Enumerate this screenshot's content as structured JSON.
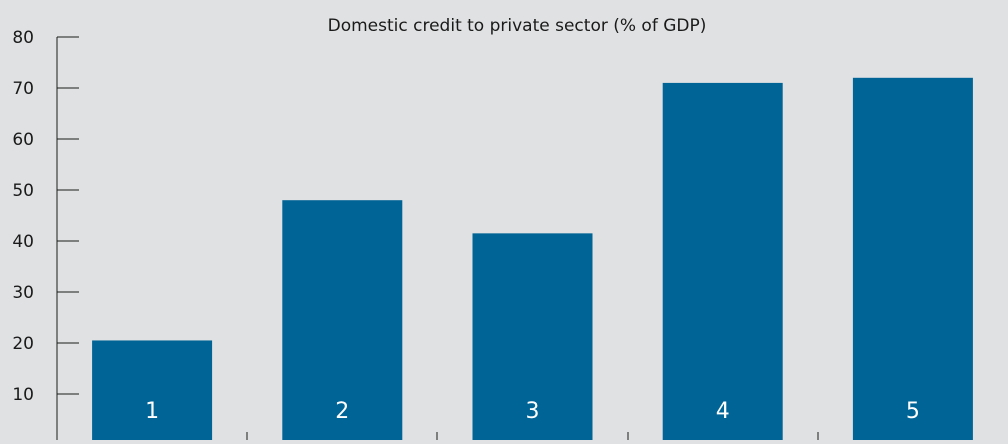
{
  "colors": {
    "background": "#e0e1e3",
    "bar": "#006496",
    "axis": "#1a1a1a",
    "text": "#1a1a1a",
    "bar_label": "#ffffff"
  },
  "chart_data": {
    "type": "bar",
    "title": "Domestic credit to private sector (% of GDP)",
    "xlabel": "",
    "ylabel": "",
    "ylim": [
      0,
      80
    ],
    "yticks": [
      10,
      20,
      30,
      40,
      50,
      60,
      70,
      80
    ],
    "grid": false,
    "categories": [
      "1",
      "2",
      "3",
      "4",
      "5"
    ],
    "values": [
      20.5,
      48,
      41.5,
      71,
      72
    ]
  }
}
